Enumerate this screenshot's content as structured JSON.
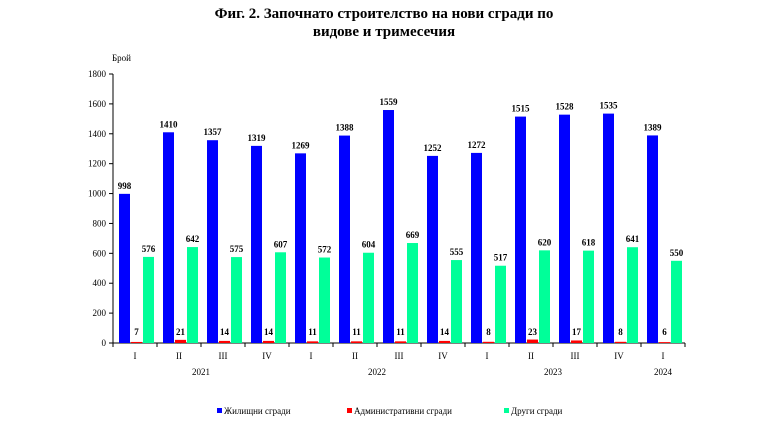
{
  "chart_data": {
    "type": "bar",
    "title_line1": "Фиг. 2. Започнато строителство на нови сгради по",
    "title_line2": "видове и тримесечия",
    "ylabel": "Брой",
    "ylim": [
      0,
      1800
    ],
    "yticks": [
      0,
      200,
      400,
      600,
      800,
      1000,
      1200,
      1400,
      1600,
      1800
    ],
    "grid": false,
    "legend_position": "bottom",
    "categories": [
      "I",
      "II",
      "III",
      "IV",
      "I",
      "II",
      "III",
      "IV",
      "I",
      "II",
      "III",
      "IV",
      "I"
    ],
    "years": [
      {
        "label": "2021",
        "start": 0,
        "end": 3
      },
      {
        "label": "2022",
        "start": 4,
        "end": 7
      },
      {
        "label": "2023",
        "start": 8,
        "end": 11
      },
      {
        "label": "2024",
        "start": 12,
        "end": 12
      }
    ],
    "series": [
      {
        "name": "Жилищни сгради",
        "color": "#0000ff",
        "values": [
          998,
          1410,
          1357,
          1319,
          1269,
          1388,
          1559,
          1252,
          1272,
          1515,
          1528,
          1535,
          1389
        ]
      },
      {
        "name": "Административни сгради",
        "color": "#ff0000",
        "values": [
          7,
          21,
          14,
          14,
          11,
          11,
          11,
          14,
          8,
          23,
          17,
          8,
          6
        ]
      },
      {
        "name": "Други сгради",
        "color": "#00ff99",
        "values": [
          576,
          642,
          575,
          607,
          572,
          604,
          669,
          555,
          517,
          620,
          618,
          641,
          550
        ]
      }
    ]
  }
}
